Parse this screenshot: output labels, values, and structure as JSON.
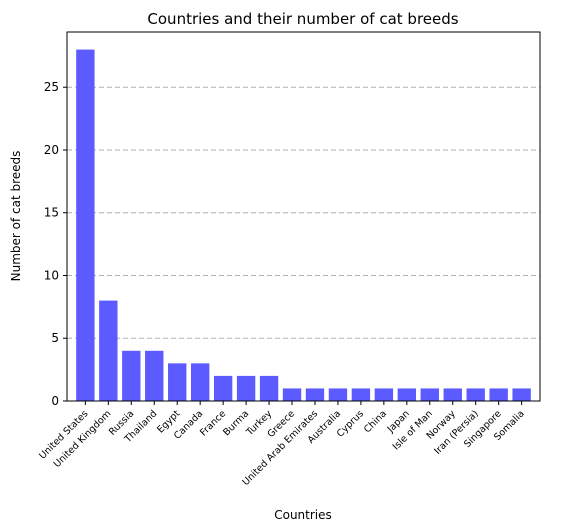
{
  "chart_data": {
    "type": "bar",
    "title": "Countries and their number of cat breeds",
    "xlabel": "Countries",
    "ylabel": "Number of cat breeds",
    "categories": [
      "United States",
      "United Kingdom",
      "Russia",
      "Thailand",
      "Egypt",
      "Canada",
      "France",
      "Burma",
      "Turkey",
      "Greece",
      "United Arab Emirates",
      "Australia",
      "Cyprus",
      "China",
      "Japan",
      "Isle of Man",
      "Norway",
      "Iran (Persia)",
      "Singapore",
      "Somalia"
    ],
    "values": [
      28,
      8,
      4,
      4,
      3,
      3,
      2,
      2,
      2,
      1,
      1,
      1,
      1,
      1,
      1,
      1,
      1,
      1,
      1,
      1
    ],
    "ylim": [
      0,
      29.4
    ],
    "yticks": [
      0,
      5,
      10,
      15,
      20,
      25
    ],
    "grid": "y-dashed",
    "bar_color": "#5b5bff"
  }
}
